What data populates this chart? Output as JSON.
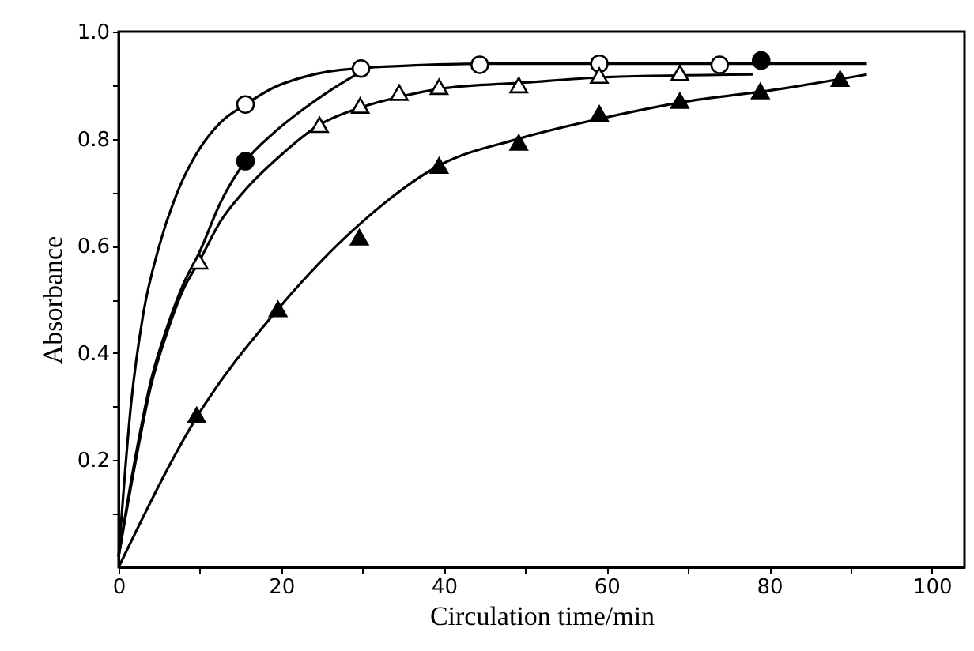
{
  "chart_data": {
    "type": "scatter",
    "xlabel": "Circulation time/min",
    "ylabel": "Absorbance",
    "xlim": [
      0,
      104
    ],
    "ylim": [
      0,
      1.0
    ],
    "xticks": [
      0,
      {
        "value": 10,
        "label": null
      },
      20,
      {
        "value": 30,
        "label": null
      },
      40,
      {
        "value": 50,
        "label": null
      },
      60,
      {
        "value": 70,
        "label": null
      },
      80,
      {
        "value": 90,
        "label": null
      },
      100
    ],
    "yticks": [
      {
        "value": 0.1,
        "label": null
      },
      0.2,
      {
        "value": 0.3,
        "label": null
      },
      0.4,
      {
        "value": 0.5,
        "label": null
      },
      0.6,
      {
        "value": 0.7,
        "label": null
      },
      0.8,
      {
        "value": 0.9,
        "label": null
      },
      {
        "value": 1,
        "label": "1.0"
      }
    ],
    "grid": false,
    "series": [
      {
        "type": "line",
        "color": "#000000",
        "marker": "none",
        "x": [
          0,
          1.5,
          3,
          5,
          7.5,
          9.9,
          12.5,
          15.6,
          19,
          22.7,
          26,
          29.8,
          35,
          44.4,
          92
        ],
        "values": [
          0.02,
          0.3,
          0.47,
          0.6,
          0.71,
          0.78,
          0.83,
          0.864,
          0.895,
          0.915,
          0.926,
          0.932,
          0.936,
          0.94,
          0.94
        ]
      },
      {
        "type": "line",
        "color": "#000000",
        "marker": "none",
        "x": [
          0,
          2,
          4,
          6,
          8,
          10,
          12.5,
          15.6,
          19,
          22.7,
          26,
          29.8
        ],
        "values": [
          0.02,
          0.2,
          0.35,
          0.45,
          0.53,
          0.59,
          0.68,
          0.758,
          0.81,
          0.855,
          0.89,
          0.925
        ]
      },
      {
        "type": "line",
        "color": "#000000",
        "marker": "none",
        "x": [
          0,
          2,
          4,
          6,
          8,
          9.9,
          12.5,
          15.6,
          20,
          24.7,
          29.7,
          34.5,
          39.4,
          50,
          60,
          78
        ],
        "values": [
          0.02,
          0.19,
          0.34,
          0.44,
          0.52,
          0.571,
          0.645,
          0.705,
          0.77,
          0.826,
          0.858,
          0.878,
          0.893,
          0.905,
          0.915,
          0.92
        ]
      },
      {
        "type": "line",
        "color": "#000000",
        "marker": "none",
        "x": [
          0,
          9.6,
          19.6,
          29.6,
          39.4,
          49.2,
          60,
          70,
          80,
          92
        ],
        "values": [
          0,
          0.28,
          0.482,
          0.64,
          0.75,
          0.8,
          0.84,
          0.87,
          0.89,
          0.92
        ]
      },
      {
        "color": "#ffffff",
        "marker": "circle",
        "x": [
          15.6,
          29.8,
          44.4,
          59.1,
          73.9
        ],
        "values": [
          0.864,
          0.931,
          0.938,
          0.94,
          0.938
        ]
      },
      {
        "color": "#000000",
        "marker": "circle",
        "x": [
          15.6,
          79
        ],
        "values": [
          0.758,
          0.946
        ]
      },
      {
        "color": "#ffffff",
        "marker": "triangle",
        "x": [
          9.9,
          24.7,
          29.7,
          34.5,
          39.4,
          49.2,
          59.1,
          69
        ],
        "values": [
          0.571,
          0.826,
          0.862,
          0.886,
          0.897,
          0.9,
          0.918,
          0.923
        ]
      },
      {
        "color": "#000000",
        "marker": "triangle",
        "x": [
          9.6,
          19.6,
          29.6,
          39.4,
          49.2,
          59.1,
          69,
          78.9,
          88.7
        ],
        "values": [
          0.284,
          0.482,
          0.616,
          0.75,
          0.793,
          0.847,
          0.871,
          0.889,
          0.912
        ]
      }
    ]
  }
}
